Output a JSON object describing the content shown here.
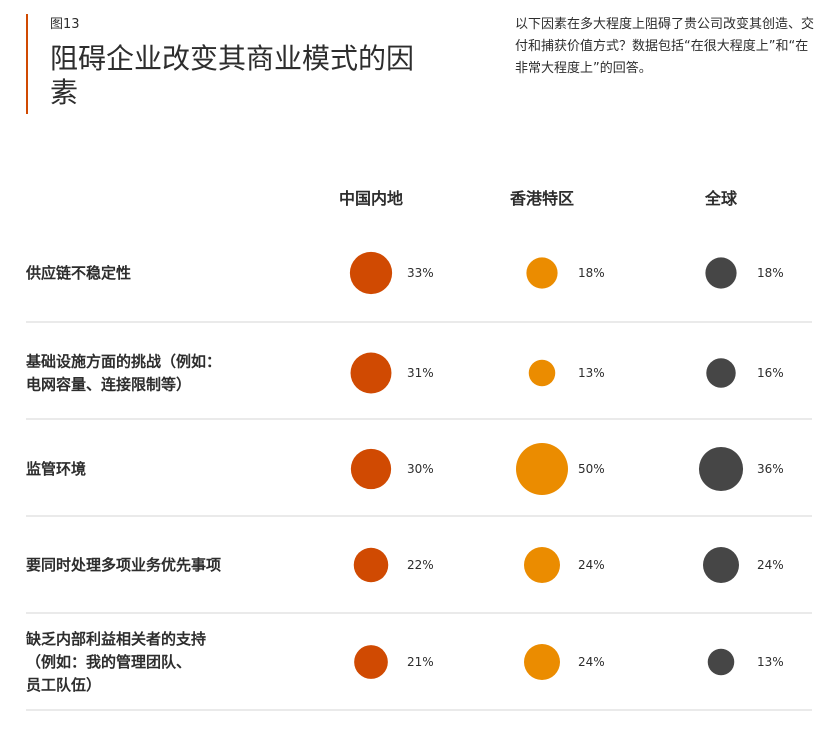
{
  "figure_label": "图13",
  "title": "阻碍企业改变其商业模式的因素",
  "note": "以下因素在多大程度上阻碍了贵公司改变其创造、交付和捕获价值方式？数据包括“在很大程度上”和“在非常大程度上”的回答。",
  "colors": {
    "accent": "#d04a02",
    "中国内地": "#d04a02",
    "香港特区": "#eb8c00",
    "全球": "#464646",
    "divider": "#dddddd"
  },
  "chart_data": {
    "type": "bubble-table",
    "unit": "%",
    "columns": [
      "中国内地",
      "香港特区",
      "全球"
    ],
    "rows": [
      {
        "label_lines": [
          "供应链不稳定性"
        ],
        "values": [
          33,
          18,
          18
        ]
      },
      {
        "label_lines": [
          "基础设施方面的挑战（例如：",
          "电网容量、连接限制等）"
        ],
        "values": [
          31,
          13,
          16
        ]
      },
      {
        "label_lines": [
          "监管环境"
        ],
        "values": [
          30,
          50,
          36
        ]
      },
      {
        "label_lines": [
          "要同时处理多项业务优先事项"
        ],
        "values": [
          22,
          24,
          24
        ]
      },
      {
        "label_lines": [
          "缺乏内部利益相关者的支持",
          "（例如：我的管理团队、",
          "员工队伍）"
        ],
        "values": [
          21,
          24,
          13
        ]
      }
    ]
  }
}
